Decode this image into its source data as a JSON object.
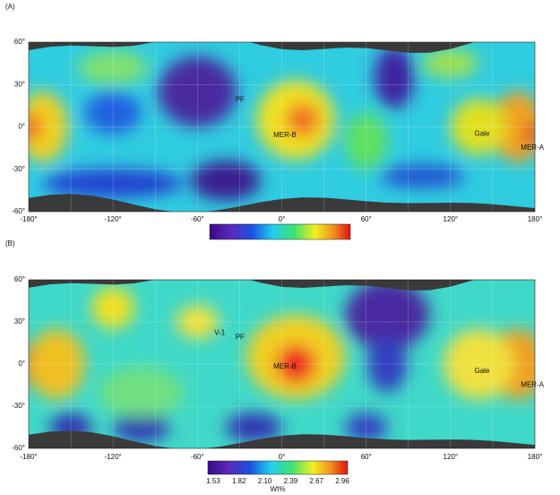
{
  "panels": [
    {
      "label": "(A)",
      "y_axis_labels": [
        "60°",
        "30°",
        "0°",
        "-30°",
        "-60°"
      ],
      "x_axis_labels": [
        "-180°",
        "-120°",
        "-60°",
        "0°",
        "60°",
        "120°",
        "180°"
      ],
      "sites": [
        {
          "label": "PF"
        },
        {
          "label": "MER-B"
        },
        {
          "label": "Gale"
        },
        {
          "label": "MER-A"
        }
      ]
    },
    {
      "label": "(B)",
      "y_axis_labels": [
        "60°",
        "30°",
        "0°",
        "-30°",
        "-60°"
      ],
      "x_axis_labels": [
        "-180°",
        "-120°",
        "-60°",
        "0°",
        "60°",
        "120°",
        "180°"
      ],
      "sites": [
        {
          "label": "V-1"
        },
        {
          "label": "PF"
        },
        {
          "label": "MER-B"
        },
        {
          "label": "Gale"
        },
        {
          "label": "MER-A"
        }
      ],
      "colorbar": {
        "tick_labels": [
          "1.53",
          "1.82",
          "2.10",
          "2.39",
          "2.67",
          "2.96"
        ],
        "unit": "Wt%"
      }
    }
  ]
}
